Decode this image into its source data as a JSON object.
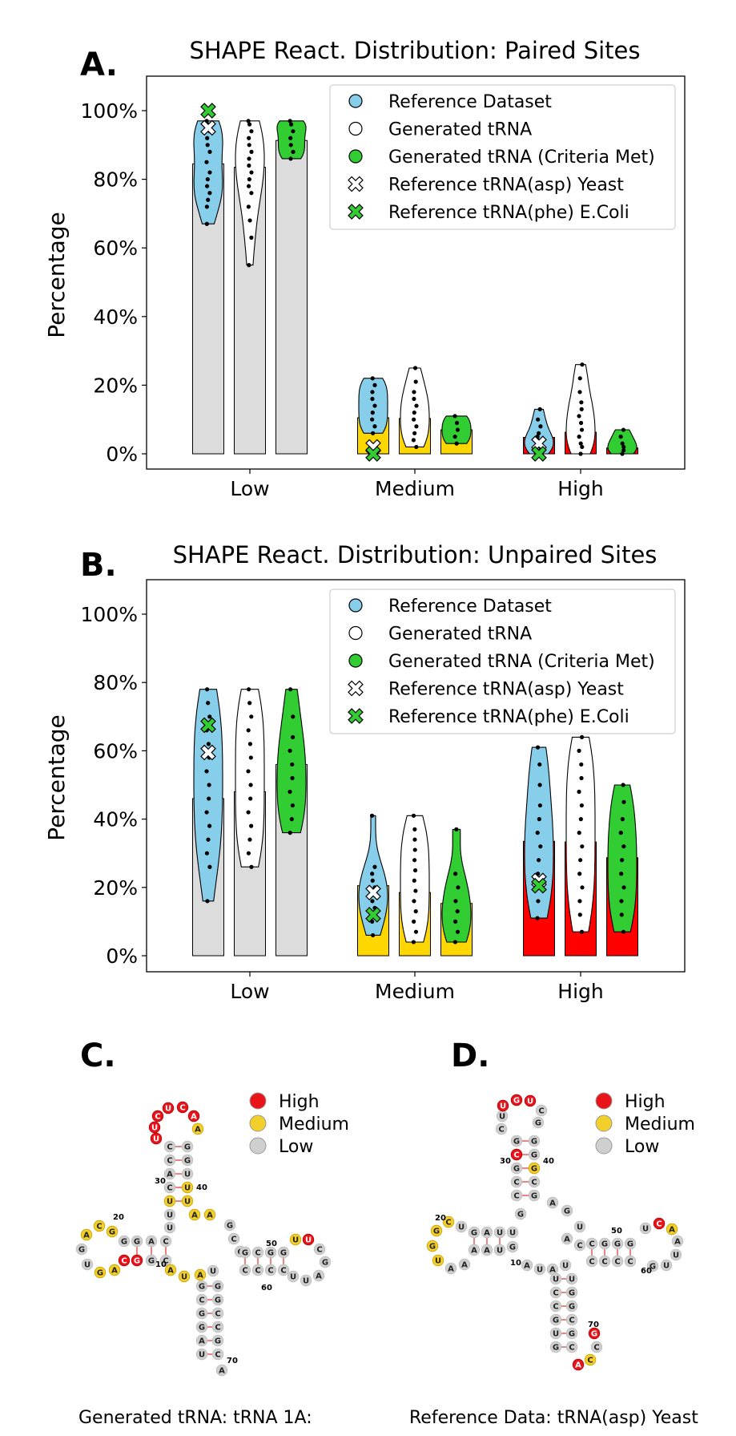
{
  "colors": {
    "reference": "#87ceeb",
    "generated": "#ffffff",
    "criteria": "#32cd32",
    "bar_low": "#dcdcdc",
    "bar_medium": "#ffd700",
    "bar_high": "#ff0000",
    "nt_high": "#e8141a",
    "nt_medium": "#f2cf2b",
    "nt_low": "#cfcfcf"
  },
  "legend": [
    {
      "label": "Reference Dataset",
      "marker": "circle",
      "color": "#87ceeb"
    },
    {
      "label": "Generated tRNA",
      "marker": "circle",
      "color": "#ffffff"
    },
    {
      "label": "Generated tRNA (Criteria Met)",
      "marker": "circle",
      "color": "#32cd32"
    },
    {
      "label": "Reference tRNA(asp) Yeast",
      "marker": "x",
      "color": "#ffffff"
    },
    {
      "label": "Reference tRNA(phe) E.Coli",
      "marker": "x",
      "color": "#32cd32"
    }
  ],
  "chart_data": [
    {
      "panel": "A.",
      "type": "bar+violin",
      "title": "SHAPE React. Distribution: Paired Sites",
      "ylabel": "Percentage",
      "xlabel": "",
      "ylim": [
        -5,
        105
      ],
      "yticks": [
        "0%",
        "20%",
        "40%",
        "60%",
        "80%",
        "100%"
      ],
      "categories": [
        "Low",
        "Medium",
        "High"
      ],
      "series": [
        {
          "name": "Reference Dataset",
          "bars": [
            84.5,
            10.5,
            4.8
          ],
          "violin": [
            {
              "min": 67,
              "max": 97
            },
            {
              "min": 6,
              "max": 22
            },
            {
              "min": 0,
              "max": 13
            }
          ],
          "points": [
            [
              67,
              72,
              74,
              76,
              78,
              80,
              82,
              85,
              88,
              90,
              92,
              94,
              96,
              97
            ],
            [
              6,
              8,
              10,
              12,
              14,
              16,
              18,
              20,
              22
            ],
            [
              0,
              1,
              2,
              3,
              4,
              5,
              6,
              8,
              10,
              13
            ]
          ]
        },
        {
          "name": "Generated tRNA",
          "bars": [
            83.5,
            10.3,
            6.3
          ],
          "violin": [
            {
              "min": 55,
              "max": 97
            },
            {
              "min": 2,
              "max": 25
            },
            {
              "min": 0,
              "max": 26
            }
          ],
          "points": [
            [
              55,
              63,
              68,
              72,
              76,
              78,
              80,
              82,
              84,
              86,
              88,
              90,
              92,
              94,
              96,
              97
            ],
            [
              2,
              4,
              6,
              8,
              10,
              12,
              14,
              16,
              18,
              21,
              25
            ],
            [
              0,
              2,
              3,
              5,
              7,
              9,
              11,
              13,
              15,
              18,
              22,
              26
            ]
          ]
        },
        {
          "name": "Generated tRNA (Criteria Met)",
          "bars": [
            91.3,
            7.0,
            1.7
          ],
          "violin": [
            {
              "min": 86,
              "max": 97
            },
            {
              "min": 3,
              "max": 11
            },
            {
              "min": 0,
              "max": 7
            }
          ],
          "points": [
            [
              86,
              88,
              90,
              92,
              94,
              96,
              97
            ],
            [
              3,
              5,
              7,
              9,
              11
            ],
            [
              0,
              1,
              2,
              3,
              5,
              7
            ]
          ]
        }
      ],
      "reference_markers": {
        "Reference tRNA(asp) Yeast": [
          95,
          2,
          3
        ],
        "Reference tRNA(phe) E.Coli": [
          100,
          0,
          0
        ]
      }
    },
    {
      "panel": "B.",
      "type": "bar+violin",
      "title": "SHAPE React. Distribution: Unpaired Sites",
      "ylabel": "Percentage",
      "xlabel": "",
      "ylim": [
        -5,
        105
      ],
      "yticks": [
        "0%",
        "20%",
        "40%",
        "60%",
        "80%",
        "100%"
      ],
      "categories": [
        "Low",
        "Medium",
        "High"
      ],
      "series": [
        {
          "name": "Reference Dataset",
          "bars": [
            46.0,
            20.5,
            33.5
          ],
          "violin": [
            {
              "min": 16,
              "max": 78
            },
            {
              "min": 6,
              "max": 41
            },
            {
              "min": 11,
              "max": 61
            }
          ],
          "points": [
            [
              16,
              26,
              30,
              34,
              38,
              42,
              46,
              50,
              54,
              58,
              62,
              66,
              70,
              74,
              78
            ],
            [
              6,
              10,
              12,
              14,
              16,
              18,
              20,
              22,
              24,
              26,
              41
            ],
            [
              11,
              16,
              20,
              24,
              28,
              32,
              36,
              40,
              44,
              50,
              56,
              61
            ]
          ]
        },
        {
          "name": "Generated tRNA",
          "bars": [
            48.0,
            18.5,
            33.3
          ],
          "violin": [
            {
              "min": 26,
              "max": 78
            },
            {
              "min": 4,
              "max": 41
            },
            {
              "min": 7,
              "max": 64
            }
          ],
          "points": [
            [
              26,
              30,
              34,
              38,
              42,
              46,
              50,
              54,
              58,
              62,
              66,
              70,
              74,
              78
            ],
            [
              4,
              7,
              10,
              13,
              16,
              19,
              22,
              25,
              28,
              31,
              34,
              37,
              41
            ],
            [
              7,
              12,
              16,
              20,
              24,
              28,
              32,
              36,
              40,
              44,
              48,
              52,
              56,
              60,
              64
            ]
          ]
        },
        {
          "name": "Generated tRNA (Criteria Met)",
          "bars": [
            56.0,
            15.3,
            28.7
          ],
          "violin": [
            {
              "min": 36,
              "max": 78
            },
            {
              "min": 4,
              "max": 37
            },
            {
              "min": 7,
              "max": 50
            }
          ],
          "points": [
            [
              36,
              40,
              44,
              48,
              52,
              56,
              60,
              64,
              70,
              78
            ],
            [
              4,
              7,
              10,
              13,
              16,
              20,
              24,
              37
            ],
            [
              7,
              12,
              16,
              20,
              24,
              28,
              32,
              36,
              40,
              45,
              50
            ]
          ]
        }
      ],
      "reference_markers": {
        "Reference tRNA(asp) Yeast": [
          59.5,
          18.5,
          22
        ],
        "Reference tRNA(phe) E.Coli": [
          67.5,
          12,
          20.5
        ]
      }
    }
  ],
  "panel_c": {
    "letter": "C.",
    "caption": "Generated tRNA: tRNA 1A:",
    "legend": [
      "High",
      "Medium",
      "Low"
    ],
    "position_labels": [
      "20",
      "30",
      "40",
      "50",
      "10",
      "60",
      "70"
    ],
    "nucleotides": {
      "acceptor_5": [
        "G",
        "C",
        "G",
        "G",
        "A",
        "U",
        "U"
      ],
      "acceptor_3": [
        "G",
        "G",
        "C",
        "C",
        "G",
        "C",
        "A"
      ],
      "d_stem_5": [
        "G",
        "A",
        "C",
        "U"
      ],
      "d_stem_3": [
        "G",
        "G",
        "C",
        "U"
      ],
      "d_loop": [
        "G",
        "C",
        "A",
        "G",
        "U",
        "G",
        "A",
        "G"
      ],
      "anticodon_stem_5": [
        "C",
        "C",
        "A",
        "C",
        "U"
      ],
      "anticodon_stem_3": [
        "G",
        "G",
        "U",
        "U",
        "U"
      ],
      "anticodon_loop": [
        "U",
        "U",
        "C",
        "U",
        "C",
        "A",
        "A"
      ],
      "t_stem_5": [
        "G",
        "C",
        "G",
        "G",
        "G"
      ],
      "t_stem_3": [
        "C",
        "C",
        "C",
        "C",
        "G"
      ],
      "t_loop": [
        "U",
        "U",
        "C",
        "G",
        "A",
        "U",
        "U"
      ],
      "variable": [
        "A",
        "A",
        "G",
        "C"
      ],
      "junction": [
        "A",
        "U",
        "A",
        "U"
      ]
    }
  },
  "panel_d": {
    "letter": "D.",
    "caption": "Reference Data: tRNA(asp) Yeast",
    "legend": [
      "High",
      "Medium",
      "Low"
    ],
    "position_labels": [
      "20",
      "30",
      "40",
      "50",
      "10",
      "60",
      "70"
    ],
    "nucleotides": {
      "acceptor_5": [
        "U",
        "C",
        "C",
        "G",
        "U",
        "G",
        "A"
      ],
      "acceptor_3": [
        "U",
        "G",
        "G",
        "C",
        "G",
        "C",
        "G"
      ],
      "d_stem_5": [
        "G",
        "A",
        "U",
        "U"
      ],
      "d_stem_3": [
        "A",
        "A",
        "U",
        "G"
      ],
      "d_loop": [
        "U",
        "C",
        "G",
        "G",
        "U",
        "A",
        "A",
        "G"
      ],
      "anticodon_stem_5": [
        "G",
        "C",
        "G",
        "C",
        "C"
      ],
      "anticodon_stem_3": [
        "G",
        "G",
        "G",
        "C",
        "G"
      ],
      "anticodon_loop": [
        "U",
        "C",
        "U",
        "G",
        "U",
        "C",
        "G"
      ],
      "t_stem_5": [
        "C",
        "G",
        "G",
        "G",
        "G"
      ],
      "t_stem_3": [
        "C",
        "C",
        "C",
        "C",
        "C"
      ],
      "t_loop": [
        "U",
        "C",
        "A",
        "A",
        "U",
        "U",
        "G"
      ],
      "variable": [
        "C",
        "A",
        "G",
        "A"
      ],
      "junction": [
        "A",
        "U",
        "A",
        "U"
      ],
      "tail": [
        "G",
        "C",
        "C",
        "A"
      ]
    }
  }
}
